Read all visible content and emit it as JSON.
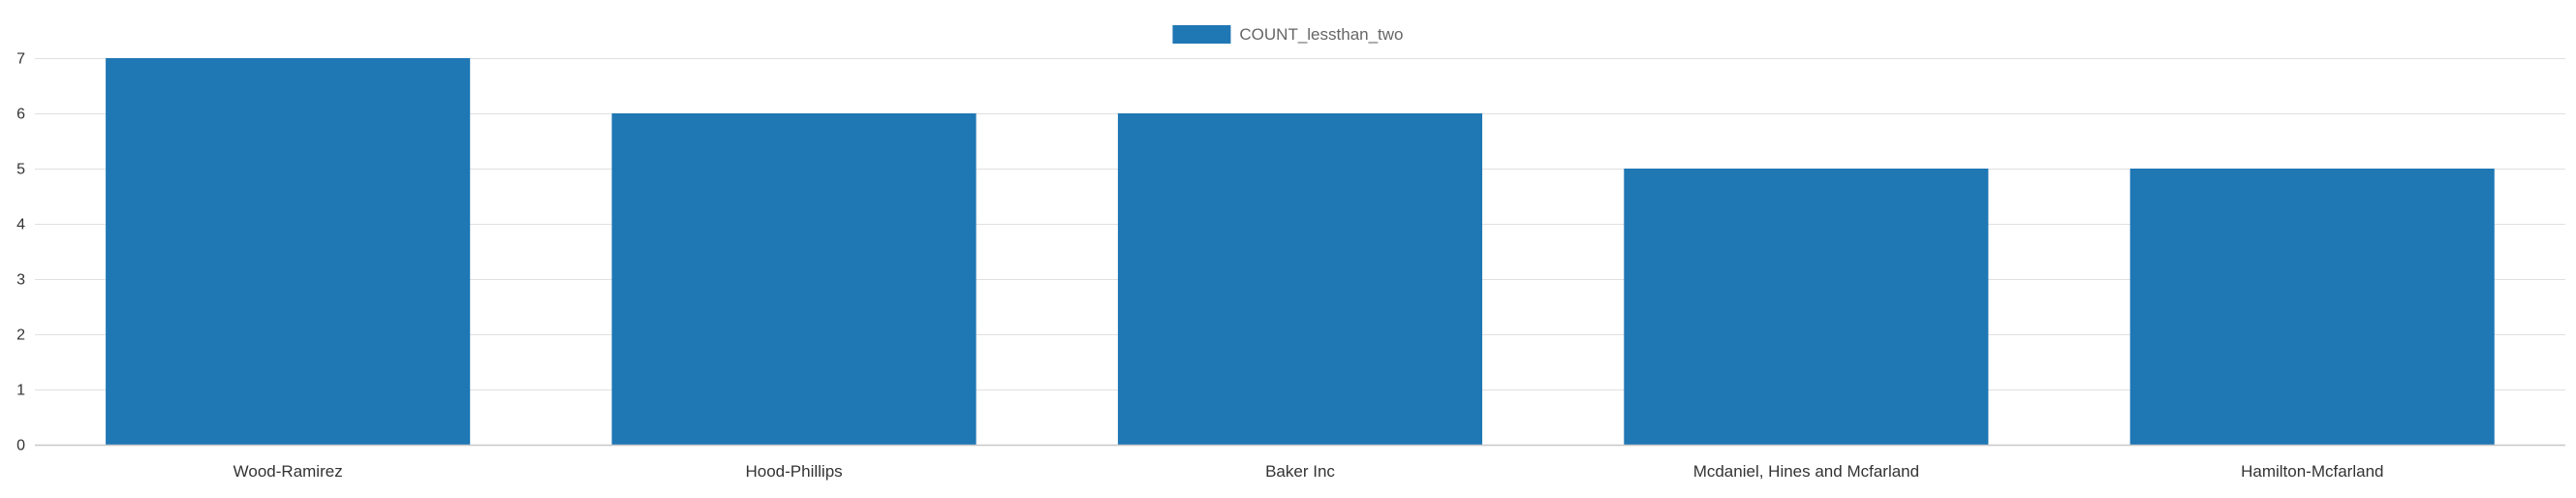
{
  "chart_data": {
    "type": "bar",
    "categories": [
      "Wood-Ramirez",
      "Hood-Phillips",
      "Baker Inc",
      "Mcdaniel, Hines and Mcfarland",
      "Hamilton-Mcfarland"
    ],
    "series": [
      {
        "name": "COUNT_lessthan_two",
        "values": [
          7,
          6,
          6,
          5,
          5
        ],
        "color": "#1f77b4"
      }
    ],
    "ylim": [
      0,
      7
    ],
    "yticks": [
      0,
      1,
      2,
      3,
      4,
      5,
      6,
      7
    ],
    "grid": true,
    "legend_position": "top-center",
    "title": "",
    "xlabel": "",
    "ylabel": ""
  }
}
